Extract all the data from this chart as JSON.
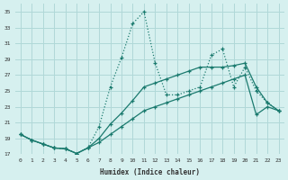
{
  "xlabel": "Humidex (Indice chaleur)",
  "xlim": [
    -0.5,
    23.5
  ],
  "ylim": [
    17,
    36
  ],
  "yticks": [
    17,
    19,
    21,
    23,
    25,
    27,
    29,
    31,
    33,
    35
  ],
  "xticks": [
    0,
    1,
    2,
    3,
    4,
    5,
    6,
    7,
    8,
    9,
    10,
    11,
    12,
    13,
    14,
    15,
    16,
    17,
    18,
    19,
    20,
    21,
    22,
    23
  ],
  "bg_color": "#d6f0ef",
  "grid_color": "#b0d8d8",
  "line_color": "#1a7a6e",
  "line1_x": [
    0,
    1,
    2,
    3,
    4,
    5,
    6,
    7,
    8,
    9,
    10,
    11,
    12,
    13,
    14,
    15,
    16,
    17,
    18,
    19,
    20,
    21,
    22,
    23
  ],
  "line1_y": [
    19.5,
    18.8,
    18.3,
    17.8,
    17.7,
    17.1,
    17.8,
    19.0,
    20.8,
    22.2,
    23.8,
    25.5,
    26.0,
    26.5,
    27.0,
    27.5,
    28.0,
    28.0,
    28.0,
    28.2,
    28.5,
    25.5,
    23.5,
    22.5
  ],
  "line2_x": [
    0,
    1,
    2,
    3,
    4,
    5,
    6,
    7,
    8,
    9,
    10,
    11,
    12,
    13,
    14,
    15,
    16,
    17,
    18,
    19,
    20,
    21,
    22,
    23
  ],
  "line2_y": [
    19.5,
    18.8,
    18.3,
    17.8,
    17.7,
    17.1,
    17.8,
    20.5,
    25.5,
    29.2,
    33.5,
    35.0,
    28.5,
    24.5,
    24.5,
    25.0,
    25.5,
    29.5,
    30.3,
    25.5,
    28.0,
    25.0,
    23.5,
    22.5
  ],
  "line3_x": [
    0,
    1,
    2,
    3,
    4,
    5,
    6,
    7,
    8,
    9,
    10,
    11,
    12,
    13,
    14,
    15,
    16,
    17,
    18,
    19,
    20,
    21,
    22,
    23
  ],
  "line3_y": [
    19.5,
    18.8,
    18.3,
    17.8,
    17.7,
    17.1,
    17.8,
    18.5,
    19.5,
    20.5,
    21.5,
    22.5,
    23.0,
    23.5,
    24.0,
    24.5,
    25.0,
    25.5,
    26.0,
    26.5,
    27.0,
    22.0,
    23.0,
    22.5
  ]
}
